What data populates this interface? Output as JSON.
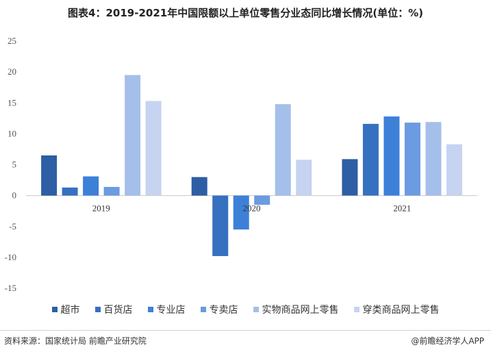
{
  "title": "图表4：2019-2021年中国限额以上单位零售分业态同比增长情况(单位：%)",
  "source": "资料来源：国家统计局 前瞻产业研究院",
  "brand": "@前瞻经济学人APP",
  "chart_data": {
    "type": "bar",
    "categories": [
      "2019",
      "2020",
      "2021"
    ],
    "series": [
      {
        "name": "超市",
        "color": "#2e5ea4",
        "values": [
          6.5,
          3.0,
          5.9
        ]
      },
      {
        "name": "百货店",
        "color": "#3670c0",
        "values": [
          1.3,
          -9.8,
          11.6
        ]
      },
      {
        "name": "专业店",
        "color": "#3d80d8",
        "values": [
          3.1,
          -5.5,
          12.8
        ]
      },
      {
        "name": "专卖店",
        "color": "#6b9be0",
        "values": [
          1.4,
          -1.5,
          11.8
        ]
      },
      {
        "name": "实物商品网上零售",
        "color": "#a5bfeb",
        "values": [
          19.5,
          14.8,
          11.9
        ]
      },
      {
        "name": "穿类商品网上零售",
        "color": "#c6d3f1",
        "values": [
          15.3,
          5.8,
          8.3
        ]
      }
    ],
    "yticks": [
      "25",
      "20",
      "15",
      "10",
      "5",
      "0",
      "-5",
      "-10",
      "-15"
    ],
    "ylim": [
      -15,
      25
    ],
    "grid": false,
    "legend_position": "bottom"
  }
}
